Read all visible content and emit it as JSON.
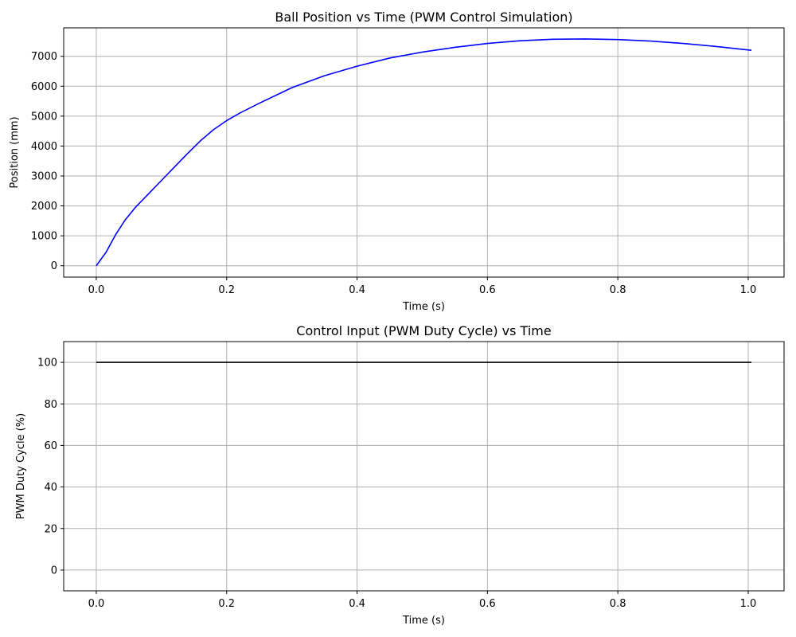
{
  "chart_data": [
    {
      "type": "line",
      "title": "Ball Position vs Time (PWM Control Simulation)",
      "xlabel": "Time (s)",
      "ylabel": "Position (mm)",
      "xlim": [
        -0.05,
        1.055
      ],
      "ylim": [
        -380,
        7950
      ],
      "xticks": [
        0.0,
        0.2,
        0.4,
        0.6,
        0.8,
        1.0
      ],
      "xtick_labels": [
        "0.0",
        "0.2",
        "0.4",
        "0.6",
        "0.8",
        "1.0"
      ],
      "yticks": [
        0,
        1000,
        2000,
        3000,
        4000,
        5000,
        6000,
        7000
      ],
      "ytick_labels": [
        "0",
        "1000",
        "2000",
        "3000",
        "4000",
        "5000",
        "6000",
        "7000"
      ],
      "grid": true,
      "series": [
        {
          "color": "#0000ff",
          "x": [
            0.0,
            0.015,
            0.03,
            0.045,
            0.06,
            0.08,
            0.1,
            0.12,
            0.14,
            0.16,
            0.18,
            0.2,
            0.22,
            0.25,
            0.3,
            0.35,
            0.4,
            0.45,
            0.5,
            0.55,
            0.6,
            0.65,
            0.7,
            0.75,
            0.8,
            0.85,
            0.9,
            0.95,
            1.005
          ],
          "y": [
            0,
            450,
            1050,
            1550,
            1950,
            2400,
            2850,
            3300,
            3750,
            4180,
            4550,
            4850,
            5100,
            5430,
            5950,
            6350,
            6670,
            6940,
            7140,
            7300,
            7430,
            7520,
            7570,
            7580,
            7560,
            7510,
            7430,
            7330,
            7200
          ]
        }
      ]
    },
    {
      "type": "line",
      "title": "Control Input (PWM Duty Cycle) vs Time",
      "xlabel": "Time (s)",
      "ylabel": "PWM Duty Cycle (%)",
      "xlim": [
        -0.05,
        1.055
      ],
      "ylim": [
        -10,
        110
      ],
      "xticks": [
        0.0,
        0.2,
        0.4,
        0.6,
        0.8,
        1.0
      ],
      "xtick_labels": [
        "0.0",
        "0.2",
        "0.4",
        "0.6",
        "0.8",
        "1.0"
      ],
      "yticks": [
        0,
        20,
        40,
        60,
        80,
        100
      ],
      "ytick_labels": [
        "0",
        "20",
        "40",
        "60",
        "80",
        "100"
      ],
      "grid": true,
      "series": [
        {
          "color": "#000000",
          "x": [
            0.0,
            1.005
          ],
          "y": [
            100,
            100
          ]
        }
      ]
    }
  ]
}
